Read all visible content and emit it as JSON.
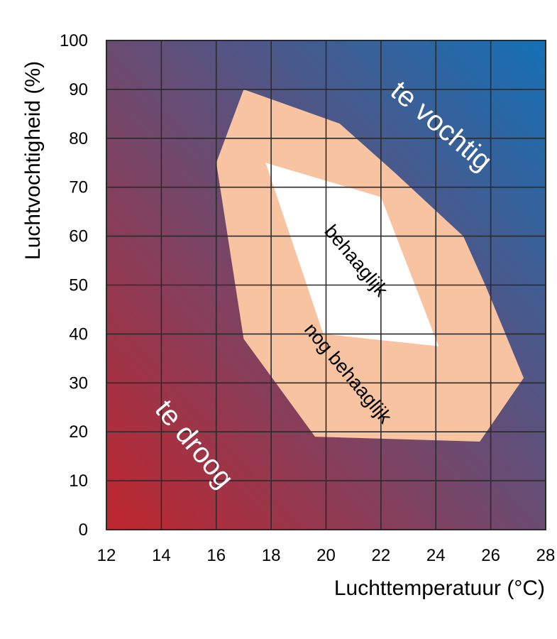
{
  "chart_data": {
    "type": "area",
    "title": "",
    "xlabel": "Luchttemperatuur (°C)",
    "ylabel": "Luchtvochtigheid (%)",
    "xlim": [
      12,
      28
    ],
    "ylim": [
      0,
      100
    ],
    "xticks": [
      12,
      14,
      16,
      18,
      20,
      22,
      24,
      26,
      28
    ],
    "yticks": [
      0,
      10,
      20,
      30,
      40,
      50,
      60,
      70,
      80,
      90,
      100
    ],
    "grid": true,
    "background_gradient": {
      "from": "#c0262d",
      "to": "#1470b6",
      "direction": "bottom-left to top-right"
    },
    "regions": [
      {
        "name": "nog behaaglijk",
        "label": "nog behaaglijk",
        "color": "#f7c3a0",
        "points": [
          [
            17,
            90
          ],
          [
            20.5,
            83
          ],
          [
            22.5,
            73
          ],
          [
            25,
            60
          ],
          [
            25.8,
            50
          ],
          [
            27.2,
            31
          ],
          [
            25.6,
            18
          ],
          [
            19.6,
            19
          ],
          [
            17,
            39
          ],
          [
            16,
            75
          ]
        ]
      },
      {
        "name": "behaaglijk",
        "label": "behaaglijk",
        "color": "#ffffff",
        "points": [
          [
            17.8,
            75
          ],
          [
            22,
            68
          ],
          [
            24.1,
            37.5
          ],
          [
            19.9,
            40
          ]
        ]
      }
    ],
    "annotations": [
      {
        "name": "te-vochtig",
        "text": "te vochtig",
        "x": 24.2,
        "y": 82.5,
        "rotation": 40,
        "color": "#ffffff"
      },
      {
        "name": "te-droog",
        "text": "te droog",
        "x": 15.2,
        "y": 17.5,
        "rotation": 50,
        "color": "#ffffff"
      },
      {
        "name": "behaaglijk",
        "text": "behaaglijk",
        "x": 21.1,
        "y": 55,
        "rotation": 50,
        "color": "#000000"
      },
      {
        "name": "nog-behaaglijk",
        "text": "nog behaaglijk",
        "x": 20.8,
        "y": 32,
        "rotation": 50,
        "color": "#000000"
      }
    ]
  }
}
